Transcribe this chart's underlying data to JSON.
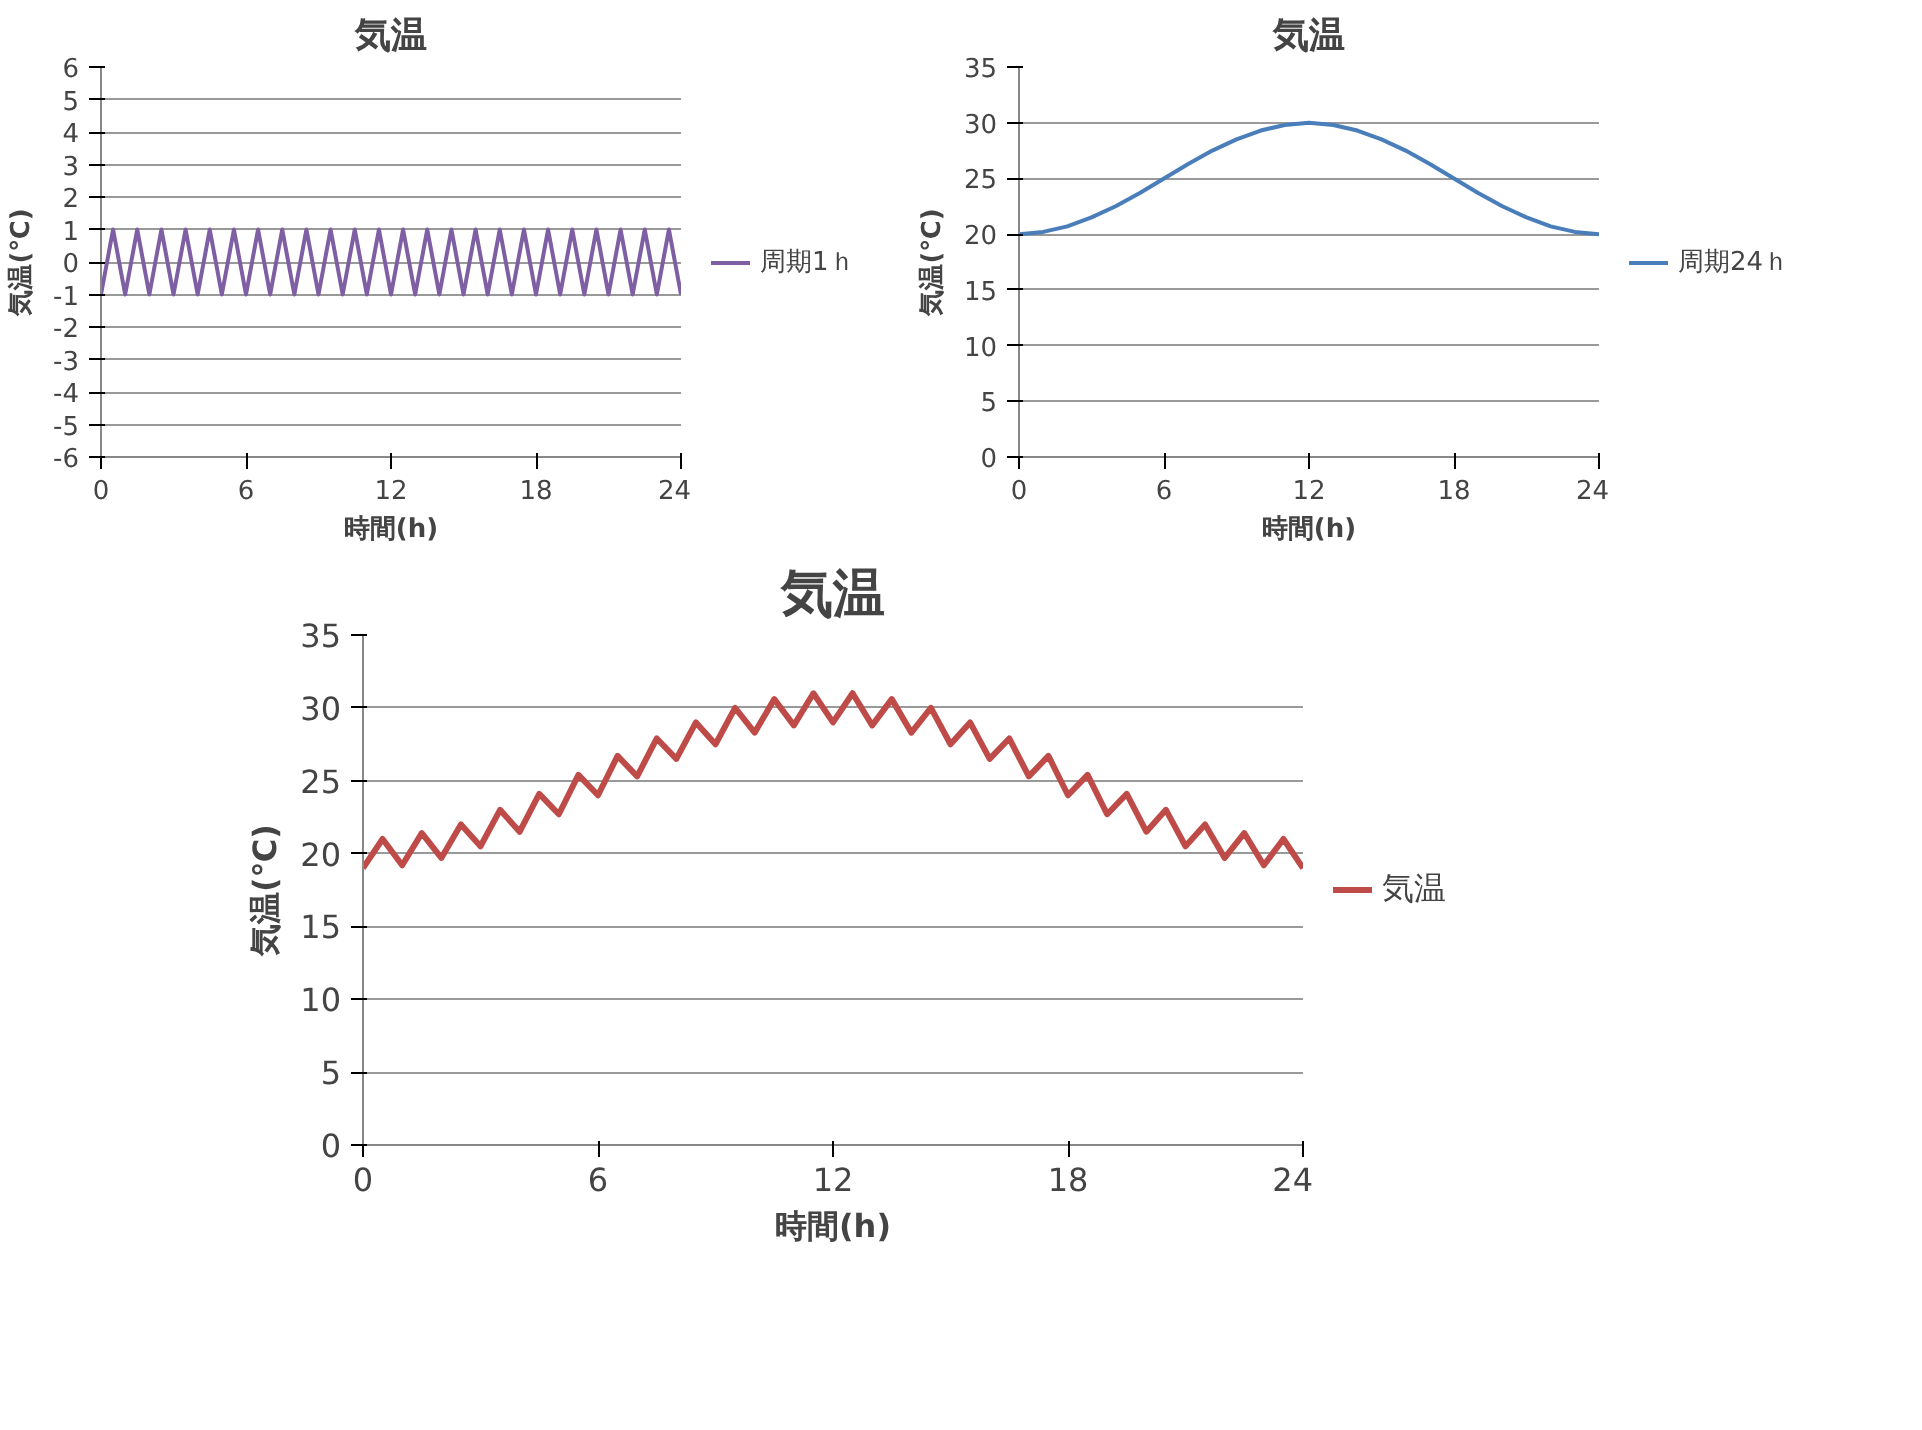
{
  "chart_data": [
    {
      "type": "line",
      "title": "気温",
      "xlabel": "時間(h)",
      "ylabel": "気温(℃)",
      "xlim": [
        0,
        24
      ],
      "ylim": [
        -6,
        6
      ],
      "xticks": [
        0,
        6,
        12,
        18,
        24
      ],
      "yticks": [
        -6,
        -5,
        -4,
        -3,
        -2,
        -1,
        0,
        1,
        2,
        3,
        4,
        5,
        6
      ],
      "grid": "y",
      "legend": "right",
      "x": [
        0,
        0.25,
        0.5,
        0.75,
        1,
        1.25,
        1.5,
        1.75,
        2,
        2.25,
        2.5,
        2.75,
        3,
        3.25,
        3.5,
        3.75,
        4,
        4.25,
        4.5,
        4.75,
        5,
        5.25,
        5.5,
        5.75,
        6,
        6.25,
        6.5,
        6.75,
        7,
        7.25,
        7.5,
        7.75,
        8,
        8.25,
        8.5,
        8.75,
        9,
        9.25,
        9.5,
        9.75,
        10,
        10.25,
        10.5,
        10.75,
        11,
        11.25,
        11.5,
        11.75,
        12,
        12.25,
        12.5,
        12.75,
        13,
        13.25,
        13.5,
        13.75,
        14,
        14.25,
        14.5,
        14.75,
        15,
        15.25,
        15.5,
        15.75,
        16,
        16.25,
        16.5,
        16.75,
        17,
        17.25,
        17.5,
        17.75,
        18,
        18.25,
        18.5,
        18.75,
        19,
        19.25,
        19.5,
        19.75,
        20,
        20.25,
        20.5,
        20.75,
        21,
        21.25,
        21.5,
        21.75,
        22,
        22.25,
        22.5,
        22.75,
        23,
        23.25,
        23.5,
        23.75,
        24
      ],
      "series": [
        {
          "name": "周期1ｈ",
          "color": "#7f5fa3",
          "values": [
            -1,
            0,
            1,
            0,
            -1,
            0,
            1,
            0,
            -1,
            0,
            1,
            0,
            -1,
            0,
            1,
            0,
            -1,
            0,
            1,
            0,
            -1,
            0,
            1,
            0,
            -1,
            0,
            1,
            0,
            -1,
            0,
            1,
            0,
            -1,
            0,
            1,
            0,
            -1,
            0,
            1,
            0,
            -1,
            0,
            1,
            0,
            -1,
            0,
            1,
            0,
            -1,
            0,
            1,
            0,
            -1,
            0,
            1,
            0,
            -1,
            0,
            1,
            0,
            -1,
            0,
            1,
            0,
            -1,
            0,
            1,
            0,
            -1,
            0,
            1,
            0,
            -1,
            0,
            1,
            0,
            -1,
            0,
            1,
            0,
            -1,
            0,
            1,
            0,
            -1,
            0,
            1,
            0,
            -1,
            0,
            1,
            0,
            -1,
            0,
            1,
            0,
            -1
          ]
        }
      ]
    },
    {
      "type": "line",
      "title": "気温",
      "xlabel": "時間(h)",
      "ylabel": "気温(℃)",
      "xlim": [
        0,
        24
      ],
      "ylim": [
        0,
        35
      ],
      "xticks": [
        0,
        6,
        12,
        18,
        24
      ],
      "yticks": [
        0,
        5,
        10,
        15,
        20,
        25,
        30,
        35
      ],
      "grid": "y",
      "legend": "right",
      "x": [
        0,
        1,
        2,
        3,
        4,
        5,
        6,
        7,
        8,
        9,
        10,
        11,
        12,
        13,
        14,
        15,
        16,
        17,
        18,
        19,
        20,
        21,
        22,
        23,
        24
      ],
      "series": [
        {
          "name": "周期24ｈ",
          "color": "#4a7ebb",
          "values": [
            20.0,
            20.2,
            20.7,
            21.5,
            22.5,
            23.7,
            25,
            26.3,
            27.5,
            28.5,
            29.3,
            29.8,
            30,
            29.8,
            29.3,
            28.5,
            27.5,
            26.3,
            25,
            23.7,
            22.5,
            21.5,
            20.7,
            20.2,
            20.0
          ]
        }
      ]
    },
    {
      "type": "line",
      "title": "気温",
      "xlabel": "時間(h)",
      "ylabel": "気温(℃)",
      "xlim": [
        0,
        24
      ],
      "ylim": [
        0,
        35
      ],
      "xticks": [
        0,
        6,
        12,
        18,
        24
      ],
      "yticks": [
        0,
        5,
        10,
        15,
        20,
        25,
        30,
        35
      ],
      "grid": "y",
      "legend": "right",
      "x": [
        0,
        0.5,
        1,
        1.5,
        2,
        2.5,
        3,
        3.5,
        4,
        4.5,
        5,
        5.5,
        6,
        6.5,
        7,
        7.5,
        8,
        8.5,
        9,
        9.5,
        10,
        10.5,
        11,
        11.5,
        12,
        12.5,
        13,
        13.5,
        14,
        14.5,
        15,
        15.5,
        16,
        16.5,
        17,
        17.5,
        18,
        18.5,
        19,
        19.5,
        20,
        20.5,
        21,
        21.5,
        22,
        22.5,
        23,
        23.5,
        24
      ],
      "series": [
        {
          "name": "気温",
          "color": "#be4b48",
          "values": [
            19.0,
            21.0,
            19.2,
            21.4,
            19.7,
            22.0,
            20.5,
            23.0,
            21.5,
            24.1,
            22.7,
            25.4,
            24.0,
            26.7,
            25.3,
            27.9,
            26.5,
            29.0,
            27.5,
            30.0,
            28.3,
            30.6,
            28.8,
            31.0,
            29.0,
            31.0,
            28.8,
            30.6,
            28.3,
            30.0,
            27.5,
            29.0,
            26.5,
            27.9,
            25.3,
            26.7,
            24.0,
            25.4,
            22.7,
            24.1,
            21.5,
            23.0,
            20.5,
            22.0,
            19.7,
            21.4,
            19.2,
            21.0,
            19.0
          ]
        }
      ]
    }
  ]
}
